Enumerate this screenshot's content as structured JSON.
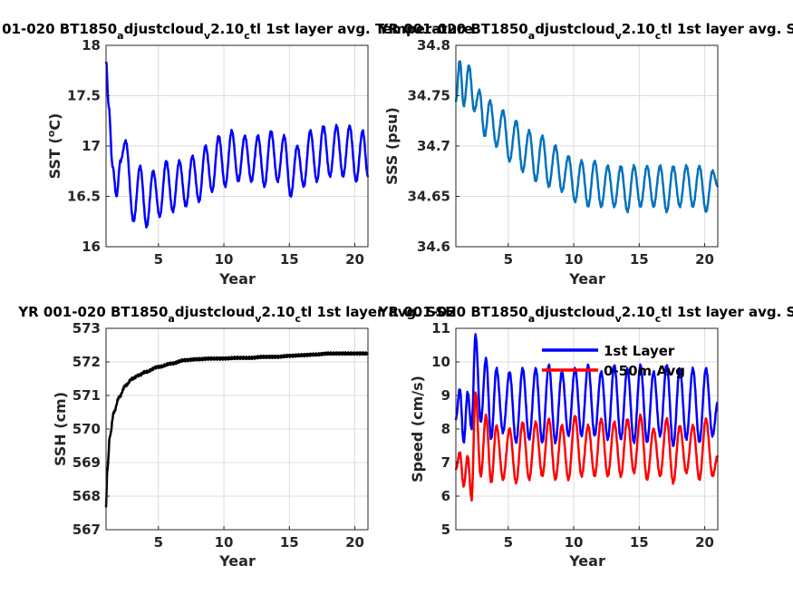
{
  "figure": {
    "background": "#ffffff"
  },
  "chart_data": [
    {
      "type": "line",
      "title_main": "01-020 BT1850",
      "title_sub1": "a",
      "title_mid": "djustcloud",
      "title_sub2": "v",
      "title_mid2": "2.10",
      "title_sub3": "c",
      "title_end": "tl 1st layer avg. Temperature",
      "xlabel": "Year",
      "ylabel_pre": "SST (",
      "ylabel_sup": "o",
      "ylabel_post": "C)",
      "xlim": [
        1,
        21
      ],
      "ylim": [
        16,
        18
      ],
      "xticks": [
        5,
        10,
        15,
        20
      ],
      "yticks": [
        16,
        16.5,
        17,
        17.5,
        18
      ],
      "ytick_labels": [
        "16",
        "16.5",
        "17",
        "17.5",
        "18"
      ],
      "grid": true,
      "series": [
        {
          "color": "#0000ff",
          "base_start": 17.85,
          "base_level": 16.6,
          "decay": 0.35,
          "trend": 0.004,
          "amp": 0.28,
          "phase": 0.5,
          "keys": [
            [
              1,
              17.85
            ],
            [
              1.2,
              17.4
            ],
            [
              1.5,
              16.8
            ],
            [
              1.8,
              16.5
            ],
            [
              2.1,
              16.85
            ],
            [
              2.5,
              17.05
            ],
            [
              3.1,
              16.25
            ],
            [
              3.6,
              16.8
            ],
            [
              4.1,
              16.2
            ],
            [
              4.6,
              16.75
            ],
            [
              5.1,
              16.3
            ],
            [
              5.6,
              16.85
            ],
            [
              6.1,
              16.35
            ],
            [
              6.6,
              16.85
            ],
            [
              7.1,
              16.4
            ],
            [
              7.6,
              16.9
            ],
            [
              8.1,
              16.45
            ],
            [
              8.6,
              17.0
            ],
            [
              9.1,
              16.55
            ],
            [
              9.6,
              17.1
            ],
            [
              10.1,
              16.6
            ],
            [
              10.6,
              17.15
            ],
            [
              11.1,
              16.65
            ],
            [
              11.6,
              17.1
            ],
            [
              12.1,
              16.65
            ],
            [
              12.6,
              17.1
            ],
            [
              13.1,
              16.6
            ],
            [
              13.6,
              17.15
            ],
            [
              14.1,
              16.65
            ],
            [
              14.6,
              17.1
            ],
            [
              15.1,
              16.5
            ],
            [
              15.6,
              17.0
            ],
            [
              16.1,
              16.6
            ],
            [
              16.6,
              17.15
            ],
            [
              17.1,
              16.65
            ],
            [
              17.6,
              17.2
            ],
            [
              18.1,
              16.7
            ],
            [
              18.6,
              17.2
            ],
            [
              19.1,
              16.7
            ],
            [
              19.6,
              17.2
            ],
            [
              20.1,
              16.65
            ],
            [
              20.6,
              17.15
            ],
            [
              21,
              16.7
            ]
          ]
        }
      ]
    },
    {
      "type": "line",
      "title_main": "YR 001-020 BT1850",
      "title_sub1": "a",
      "title_mid": "djustcloud",
      "title_sub2": "v",
      "title_mid2": "2.10",
      "title_sub3": "c",
      "title_end": "tl 1st layer avg. S",
      "xlabel": "Year",
      "ylabel": "SSS (psu)",
      "xlim": [
        1,
        21
      ],
      "ylim": [
        34.6,
        34.8
      ],
      "xticks": [
        5,
        10,
        15,
        20
      ],
      "yticks": [
        34.6,
        34.65,
        34.7,
        34.75,
        34.8
      ],
      "ytick_labels": [
        "34.6",
        "34.65",
        "34.7",
        "34.75",
        "34.8"
      ],
      "grid": true,
      "series": [
        {
          "color": "#0072bd",
          "keys": [
            [
              1,
              34.745
            ],
            [
              1.3,
              34.785
            ],
            [
              1.6,
              34.74
            ],
            [
              2.0,
              34.78
            ],
            [
              2.4,
              34.735
            ],
            [
              2.8,
              34.755
            ],
            [
              3.2,
              34.71
            ],
            [
              3.6,
              34.745
            ],
            [
              4.1,
              34.7
            ],
            [
              4.6,
              34.735
            ],
            [
              5.1,
              34.685
            ],
            [
              5.6,
              34.725
            ],
            [
              6.1,
              34.675
            ],
            [
              6.6,
              34.715
            ],
            [
              7.1,
              34.665
            ],
            [
              7.6,
              34.71
            ],
            [
              8.1,
              34.66
            ],
            [
              8.6,
              34.7
            ],
            [
              9.1,
              34.655
            ],
            [
              9.6,
              34.69
            ],
            [
              10.1,
              34.645
            ],
            [
              10.6,
              34.685
            ],
            [
              11.1,
              34.64
            ],
            [
              11.6,
              34.685
            ],
            [
              12.1,
              34.64
            ],
            [
              12.6,
              34.68
            ],
            [
              13.1,
              34.64
            ],
            [
              13.6,
              34.68
            ],
            [
              14.1,
              34.635
            ],
            [
              14.6,
              34.68
            ],
            [
              15.1,
              34.64
            ],
            [
              15.6,
              34.68
            ],
            [
              16.1,
              34.64
            ],
            [
              16.6,
              34.68
            ],
            [
              17.1,
              34.635
            ],
            [
              17.6,
              34.68
            ],
            [
              18.1,
              34.64
            ],
            [
              18.6,
              34.68
            ],
            [
              19.1,
              34.64
            ],
            [
              19.6,
              34.68
            ],
            [
              20.1,
              34.635
            ],
            [
              20.6,
              34.675
            ],
            [
              21,
              34.66
            ]
          ]
        }
      ]
    },
    {
      "type": "line",
      "title_main": "YR 001-020 BT1850",
      "title_sub1": "a",
      "title_mid": "djustcloud",
      "title_sub2": "v",
      "title_mid2": "2.10",
      "title_sub3": "c",
      "title_end": "tl 1st layer avg. SSH",
      "xlabel": "Year",
      "ylabel": "SSH (cm)",
      "xlim": [
        1,
        21
      ],
      "ylim": [
        567,
        573
      ],
      "xticks": [
        5,
        10,
        15,
        20
      ],
      "yticks": [
        567,
        568,
        569,
        570,
        571,
        572,
        573
      ],
      "ytick_labels": [
        "567",
        "568",
        "569",
        "570",
        "571",
        "572",
        "573"
      ],
      "grid": true,
      "series": [
        {
          "color": "#000000",
          "keys": [
            [
              1,
              567.7
            ],
            [
              1.1,
              568.8
            ],
            [
              1.3,
              569.8
            ],
            [
              1.6,
              570.5
            ],
            [
              2.0,
              570.95
            ],
            [
              2.5,
              571.3
            ],
            [
              3.0,
              571.5
            ],
            [
              3.5,
              571.6
            ],
            [
              4.0,
              571.7
            ],
            [
              5.0,
              571.85
            ],
            [
              6.0,
              571.95
            ],
            [
              7.0,
              572.05
            ],
            [
              8.0,
              572.08
            ],
            [
              9.0,
              572.1
            ],
            [
              10.0,
              572.1
            ],
            [
              11.0,
              572.12
            ],
            [
              12.0,
              572.12
            ],
            [
              13.0,
              572.15
            ],
            [
              14.0,
              572.15
            ],
            [
              15.0,
              572.18
            ],
            [
              16.0,
              572.2
            ],
            [
              17.0,
              572.22
            ],
            [
              18.0,
              572.25
            ],
            [
              19.0,
              572.25
            ],
            [
              20.0,
              572.25
            ],
            [
              21,
              572.25
            ]
          ]
        }
      ]
    },
    {
      "type": "line",
      "title_main": "YR 001-020 BT1850",
      "title_sub1": "a",
      "title_mid": "djustcloud",
      "title_sub2": "v",
      "title_mid2": "2.10",
      "title_sub3": "c",
      "title_end": "tl 1st layer avg. S",
      "xlabel": "Year",
      "ylabel": "Speed (cm/s)",
      "xlim": [
        1,
        21
      ],
      "ylim": [
        5,
        11
      ],
      "xticks": [
        5,
        10,
        15,
        20
      ],
      "yticks": [
        5,
        6,
        7,
        8,
        9,
        10,
        11
      ],
      "ytick_labels": [
        "5",
        "6",
        "7",
        "8",
        "9",
        "10",
        "11"
      ],
      "grid": true,
      "legend_position": "top-right",
      "series": [
        {
          "name": "1st Layer",
          "color": "#0000ff",
          "keys": [
            [
              1,
              8.3
            ],
            [
              1.3,
              9.2
            ],
            [
              1.6,
              7.6
            ],
            [
              1.9,
              9.1
            ],
            [
              2.2,
              8.0
            ],
            [
              2.5,
              10.8
            ],
            [
              2.9,
              8.2
            ],
            [
              3.3,
              10.1
            ],
            [
              3.7,
              7.7
            ],
            [
              4.1,
              9.8
            ],
            [
              4.6,
              7.9
            ],
            [
              5.1,
              9.7
            ],
            [
              5.6,
              7.6
            ],
            [
              6.1,
              9.8
            ],
            [
              6.6,
              7.7
            ],
            [
              7.1,
              9.8
            ],
            [
              7.6,
              7.6
            ],
            [
              8.1,
              9.9
            ],
            [
              8.6,
              7.6
            ],
            [
              9.1,
              9.7
            ],
            [
              9.6,
              7.8
            ],
            [
              10.1,
              9.8
            ],
            [
              10.6,
              7.8
            ],
            [
              11.1,
              9.9
            ],
            [
              11.6,
              7.8
            ],
            [
              12.1,
              9.7
            ],
            [
              12.6,
              7.7
            ],
            [
              13.1,
              9.9
            ],
            [
              13.6,
              7.7
            ],
            [
              14.1,
              9.8
            ],
            [
              14.6,
              7.6
            ],
            [
              15.1,
              9.9
            ],
            [
              15.6,
              7.6
            ],
            [
              16.1,
              9.7
            ],
            [
              16.6,
              7.8
            ],
            [
              17.1,
              9.9
            ],
            [
              17.6,
              7.5
            ],
            [
              18.1,
              9.8
            ],
            [
              18.6,
              7.7
            ],
            [
              19.1,
              9.8
            ],
            [
              19.6,
              7.6
            ],
            [
              20.1,
              9.8
            ],
            [
              20.6,
              7.8
            ],
            [
              21,
              8.8
            ]
          ]
        },
        {
          "name": "0-50m Avg",
          "color": "#ff0000",
          "keys": [
            [
              1,
              6.8
            ],
            [
              1.3,
              7.3
            ],
            [
              1.6,
              6.3
            ],
            [
              1.9,
              7.2
            ],
            [
              2.2,
              5.9
            ],
            [
              2.5,
              9.1
            ],
            [
              2.9,
              6.6
            ],
            [
              3.3,
              8.4
            ],
            [
              3.7,
              6.4
            ],
            [
              4.1,
              8.1
            ],
            [
              4.6,
              6.5
            ],
            [
              5.1,
              8.0
            ],
            [
              5.6,
              6.4
            ],
            [
              6.1,
              8.2
            ],
            [
              6.6,
              6.5
            ],
            [
              7.1,
              8.2
            ],
            [
              7.6,
              6.6
            ],
            [
              8.1,
              8.3
            ],
            [
              8.6,
              6.5
            ],
            [
              9.1,
              8.1
            ],
            [
              9.6,
              6.5
            ],
            [
              10.1,
              8.4
            ],
            [
              10.6,
              6.6
            ],
            [
              11.1,
              8.1
            ],
            [
              11.6,
              6.6
            ],
            [
              12.1,
              8.3
            ],
            [
              12.6,
              6.6
            ],
            [
              13.1,
              8.2
            ],
            [
              13.6,
              6.6
            ],
            [
              14.1,
              8.3
            ],
            [
              14.6,
              6.7
            ],
            [
              15.1,
              8.4
            ],
            [
              15.6,
              6.5
            ],
            [
              16.1,
              8.0
            ],
            [
              16.6,
              6.6
            ],
            [
              17.1,
              8.3
            ],
            [
              17.6,
              6.4
            ],
            [
              18.1,
              8.1
            ],
            [
              18.6,
              6.7
            ],
            [
              19.1,
              8.1
            ],
            [
              19.6,
              6.5
            ],
            [
              20.1,
              8.3
            ],
            [
              20.6,
              6.6
            ],
            [
              21,
              7.2
            ]
          ]
        }
      ]
    }
  ]
}
